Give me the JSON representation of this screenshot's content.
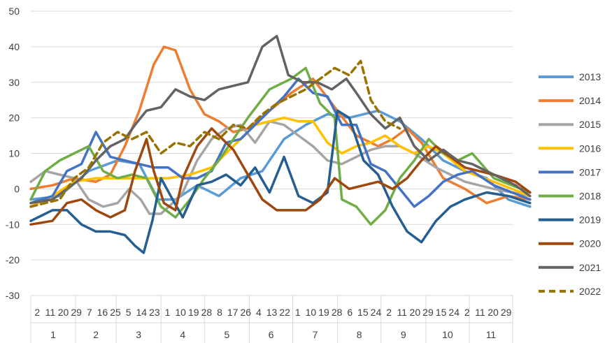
{
  "chart_data": {
    "type": "line",
    "ylim": [
      -30,
      50
    ],
    "yticks": [
      -30,
      -20,
      -10,
      0,
      10,
      20,
      30,
      40,
      50
    ],
    "grid": "horizontal",
    "legend_position": "right",
    "x_tick_labels": [
      "2",
      "11",
      "20",
      "29",
      "7",
      "16",
      "25",
      "5",
      "14",
      "23",
      "1",
      "10",
      "19",
      "28",
      "8",
      "17",
      "26",
      "4",
      "13",
      "22",
      "1",
      "10",
      "19",
      "28",
      "6",
      "15",
      "24",
      "2",
      "11",
      "20",
      "29",
      "15",
      "24",
      "2",
      "11",
      "20",
      "29"
    ],
    "month_labels": [
      "1",
      "2",
      "3",
      "4",
      "5",
      "6",
      "7",
      "8",
      "9",
      "10",
      "11"
    ],
    "month_lengths": [
      31,
      28,
      31,
      30,
      31,
      30,
      31,
      30,
      31,
      30,
      30
    ],
    "series": [
      {
        "name": "2013",
        "color": "#5b9bd5",
        "dash": "solid",
        "values": [
          [
            0,
            -3
          ],
          [
            20,
            -2
          ],
          [
            40,
            5
          ],
          [
            60,
            8
          ],
          [
            75,
            7
          ],
          [
            88,
            -3
          ],
          [
            100,
            -3
          ],
          [
            115,
            1
          ],
          [
            130,
            -2
          ],
          [
            145,
            3
          ],
          [
            160,
            5
          ],
          [
            175,
            14
          ],
          [
            190,
            18
          ],
          [
            205,
            21
          ],
          [
            220,
            20
          ],
          [
            240,
            22
          ],
          [
            255,
            19
          ],
          [
            270,
            14
          ],
          [
            285,
            8
          ],
          [
            300,
            5
          ],
          [
            315,
            3
          ],
          [
            330,
            -3
          ],
          [
            345,
            -5
          ]
        ]
      },
      {
        "name": "2014",
        "color": "#ed7d31",
        "dash": "solid",
        "values": [
          [
            0,
            0
          ],
          [
            15,
            1
          ],
          [
            30,
            3
          ],
          [
            45,
            2
          ],
          [
            55,
            4
          ],
          [
            65,
            12
          ],
          [
            75,
            22
          ],
          [
            85,
            35
          ],
          [
            92,
            40
          ],
          [
            100,
            39
          ],
          [
            110,
            28
          ],
          [
            120,
            21
          ],
          [
            130,
            19
          ],
          [
            140,
            16
          ],
          [
            150,
            17
          ],
          [
            165,
            22
          ],
          [
            180,
            27
          ],
          [
            195,
            31
          ],
          [
            210,
            23
          ],
          [
            225,
            15
          ],
          [
            240,
            12
          ],
          [
            250,
            14
          ],
          [
            260,
            17
          ],
          [
            270,
            13
          ],
          [
            285,
            3
          ],
          [
            300,
            0
          ],
          [
            315,
            -4
          ],
          [
            330,
            -2
          ],
          [
            345,
            -3
          ]
        ]
      },
      {
        "name": "2015",
        "color": "#a5a5a5",
        "dash": "solid",
        "values": [
          [
            0,
            2
          ],
          [
            10,
            5
          ],
          [
            20,
            4
          ],
          [
            30,
            3
          ],
          [
            40,
            -3
          ],
          [
            50,
            -5
          ],
          [
            60,
            -4
          ],
          [
            68,
            0
          ],
          [
            76,
            -3
          ],
          [
            82,
            -7
          ],
          [
            90,
            -7
          ],
          [
            98,
            -4
          ],
          [
            105,
            -1
          ],
          [
            115,
            8
          ],
          [
            125,
            14
          ],
          [
            135,
            17
          ],
          [
            145,
            18
          ],
          [
            155,
            13
          ],
          [
            165,
            19
          ],
          [
            175,
            18
          ],
          [
            185,
            15
          ],
          [
            195,
            12
          ],
          [
            205,
            8
          ],
          [
            215,
            7
          ],
          [
            225,
            9
          ],
          [
            235,
            11
          ],
          [
            245,
            12
          ],
          [
            255,
            12
          ],
          [
            265,
            10
          ],
          [
            280,
            6
          ],
          [
            300,
            2
          ],
          [
            320,
            0
          ],
          [
            345,
            -2
          ]
        ]
      },
      {
        "name": "2016",
        "color": "#ffc000",
        "dash": "solid",
        "values": [
          [
            0,
            -5
          ],
          [
            15,
            -2
          ],
          [
            30,
            2
          ],
          [
            45,
            3
          ],
          [
            60,
            3
          ],
          [
            75,
            3
          ],
          [
            85,
            3
          ],
          [
            95,
            3
          ],
          [
            110,
            4
          ],
          [
            125,
            6
          ],
          [
            140,
            12
          ],
          [
            155,
            18
          ],
          [
            165,
            19
          ],
          [
            175,
            20
          ],
          [
            185,
            19
          ],
          [
            195,
            19
          ],
          [
            205,
            13
          ],
          [
            215,
            10
          ],
          [
            225,
            12
          ],
          [
            235,
            13
          ],
          [
            245,
            15
          ],
          [
            255,
            12
          ],
          [
            265,
            10
          ],
          [
            275,
            12
          ],
          [
            285,
            10
          ],
          [
            300,
            5
          ],
          [
            320,
            2
          ],
          [
            345,
            -2
          ]
        ]
      },
      {
        "name": "2017",
        "color": "#4472c4",
        "dash": "solid",
        "values": [
          [
            0,
            -4
          ],
          [
            15,
            -2
          ],
          [
            25,
            5
          ],
          [
            35,
            7
          ],
          [
            45,
            16
          ],
          [
            55,
            9
          ],
          [
            65,
            8
          ],
          [
            75,
            7
          ],
          [
            85,
            6
          ],
          [
            95,
            6
          ],
          [
            105,
            3
          ],
          [
            115,
            3
          ],
          [
            125,
            5
          ],
          [
            135,
            13
          ],
          [
            145,
            14
          ],
          [
            155,
            18
          ],
          [
            165,
            22
          ],
          [
            175,
            26
          ],
          [
            185,
            31
          ],
          [
            195,
            27
          ],
          [
            205,
            26
          ],
          [
            215,
            18
          ],
          [
            225,
            18
          ],
          [
            235,
            7
          ],
          [
            245,
            5
          ],
          [
            255,
            0
          ],
          [
            265,
            -5
          ],
          [
            275,
            -2
          ],
          [
            285,
            2
          ],
          [
            295,
            4
          ],
          [
            305,
            5
          ],
          [
            320,
            1
          ],
          [
            345,
            -3
          ]
        ]
      },
      {
        "name": "2018",
        "color": "#70ad47",
        "dash": "solid",
        "values": [
          [
            0,
            -3
          ],
          [
            10,
            5
          ],
          [
            20,
            8
          ],
          [
            30,
            10
          ],
          [
            40,
            12
          ],
          [
            50,
            5
          ],
          [
            60,
            3
          ],
          [
            70,
            4
          ],
          [
            80,
            3
          ],
          [
            90,
            -5
          ],
          [
            100,
            -8
          ],
          [
            110,
            -3
          ],
          [
            120,
            3
          ],
          [
            130,
            8
          ],
          [
            140,
            14
          ],
          [
            150,
            20
          ],
          [
            165,
            28
          ],
          [
            180,
            31
          ],
          [
            190,
            34
          ],
          [
            200,
            24
          ],
          [
            210,
            20
          ],
          [
            215,
            -3
          ],
          [
            225,
            -5
          ],
          [
            235,
            -10
          ],
          [
            245,
            -6
          ],
          [
            255,
            3
          ],
          [
            265,
            8
          ],
          [
            275,
            14
          ],
          [
            285,
            10
          ],
          [
            295,
            8
          ],
          [
            305,
            10
          ],
          [
            320,
            3
          ],
          [
            345,
            -1
          ]
        ]
      },
      {
        "name": "2019",
        "color": "#255e91",
        "dash": "solid",
        "values": [
          [
            0,
            -9
          ],
          [
            15,
            -6
          ],
          [
            25,
            -6
          ],
          [
            35,
            -10
          ],
          [
            45,
            -12
          ],
          [
            55,
            -12
          ],
          [
            65,
            -13
          ],
          [
            72,
            -16
          ],
          [
            78,
            -18
          ],
          [
            84,
            -9
          ],
          [
            90,
            3
          ],
          [
            98,
            -3
          ],
          [
            105,
            -8
          ],
          [
            115,
            1
          ],
          [
            125,
            2
          ],
          [
            135,
            4
          ],
          [
            145,
            1
          ],
          [
            155,
            6
          ],
          [
            165,
            -1
          ],
          [
            175,
            9
          ],
          [
            185,
            -2
          ],
          [
            195,
            -4
          ],
          [
            205,
            -1
          ],
          [
            212,
            22
          ],
          [
            220,
            20
          ],
          [
            230,
            8
          ],
          [
            240,
            4
          ],
          [
            250,
            -5
          ],
          [
            260,
            -12
          ],
          [
            270,
            -15
          ],
          [
            280,
            -9
          ],
          [
            290,
            -5
          ],
          [
            300,
            -3
          ],
          [
            315,
            -1
          ],
          [
            330,
            -2
          ],
          [
            345,
            -4
          ]
        ]
      },
      {
        "name": "2020",
        "color": "#9e480e",
        "dash": "solid",
        "values": [
          [
            0,
            -10
          ],
          [
            15,
            -9
          ],
          [
            25,
            -4
          ],
          [
            35,
            -3
          ],
          [
            45,
            -6
          ],
          [
            55,
            -8
          ],
          [
            65,
            -6
          ],
          [
            72,
            5
          ],
          [
            80,
            14
          ],
          [
            85,
            5
          ],
          [
            92,
            -4
          ],
          [
            100,
            -6
          ],
          [
            105,
            3
          ],
          [
            115,
            12
          ],
          [
            125,
            17
          ],
          [
            130,
            15
          ],
          [
            140,
            11
          ],
          [
            150,
            4
          ],
          [
            160,
            -3
          ],
          [
            170,
            -6
          ],
          [
            180,
            -6
          ],
          [
            190,
            -6
          ],
          [
            200,
            -3
          ],
          [
            210,
            3
          ],
          [
            220,
            0
          ],
          [
            230,
            1
          ],
          [
            240,
            2
          ],
          [
            250,
            0
          ],
          [
            260,
            3
          ],
          [
            270,
            8
          ],
          [
            280,
            12
          ],
          [
            290,
            9
          ],
          [
            300,
            6
          ],
          [
            310,
            5
          ],
          [
            320,
            4
          ],
          [
            335,
            2
          ],
          [
            345,
            -1
          ]
        ]
      },
      {
        "name": "2021",
        "color": "#636363",
        "dash": "solid",
        "values": [
          [
            0,
            -4
          ],
          [
            15,
            -3
          ],
          [
            25,
            0
          ],
          [
            35,
            3
          ],
          [
            45,
            8
          ],
          [
            55,
            12
          ],
          [
            65,
            14
          ],
          [
            72,
            18
          ],
          [
            80,
            22
          ],
          [
            90,
            23
          ],
          [
            100,
            28
          ],
          [
            110,
            26
          ],
          [
            120,
            25
          ],
          [
            130,
            28
          ],
          [
            140,
            29
          ],
          [
            150,
            30
          ],
          [
            160,
            40
          ],
          [
            170,
            43
          ],
          [
            178,
            32
          ],
          [
            188,
            30
          ],
          [
            198,
            30
          ],
          [
            208,
            28
          ],
          [
            218,
            31
          ],
          [
            225,
            27
          ],
          [
            235,
            21
          ],
          [
            245,
            17
          ],
          [
            255,
            20
          ],
          [
            265,
            12
          ],
          [
            275,
            8
          ],
          [
            285,
            11
          ],
          [
            295,
            8
          ],
          [
            305,
            7
          ],
          [
            320,
            4
          ],
          [
            335,
            1
          ],
          [
            345,
            -2
          ]
        ]
      },
      {
        "name": "2022",
        "color": "#997300",
        "dash": "dash",
        "values": [
          [
            0,
            -5
          ],
          [
            10,
            -4
          ],
          [
            20,
            -3
          ],
          [
            30,
            3
          ],
          [
            40,
            6
          ],
          [
            50,
            13
          ],
          [
            60,
            16
          ],
          [
            70,
            14
          ],
          [
            80,
            16
          ],
          [
            90,
            10
          ],
          [
            100,
            13
          ],
          [
            110,
            12
          ],
          [
            120,
            16
          ],
          [
            130,
            14
          ],
          [
            140,
            18
          ],
          [
            150,
            17
          ],
          [
            160,
            21
          ],
          [
            170,
            24
          ],
          [
            180,
            26
          ],
          [
            190,
            28
          ],
          [
            200,
            31
          ],
          [
            210,
            34
          ],
          [
            220,
            32
          ],
          [
            228,
            36
          ],
          [
            235,
            25
          ],
          [
            245,
            19
          ],
          [
            255,
            17
          ]
        ]
      }
    ]
  }
}
